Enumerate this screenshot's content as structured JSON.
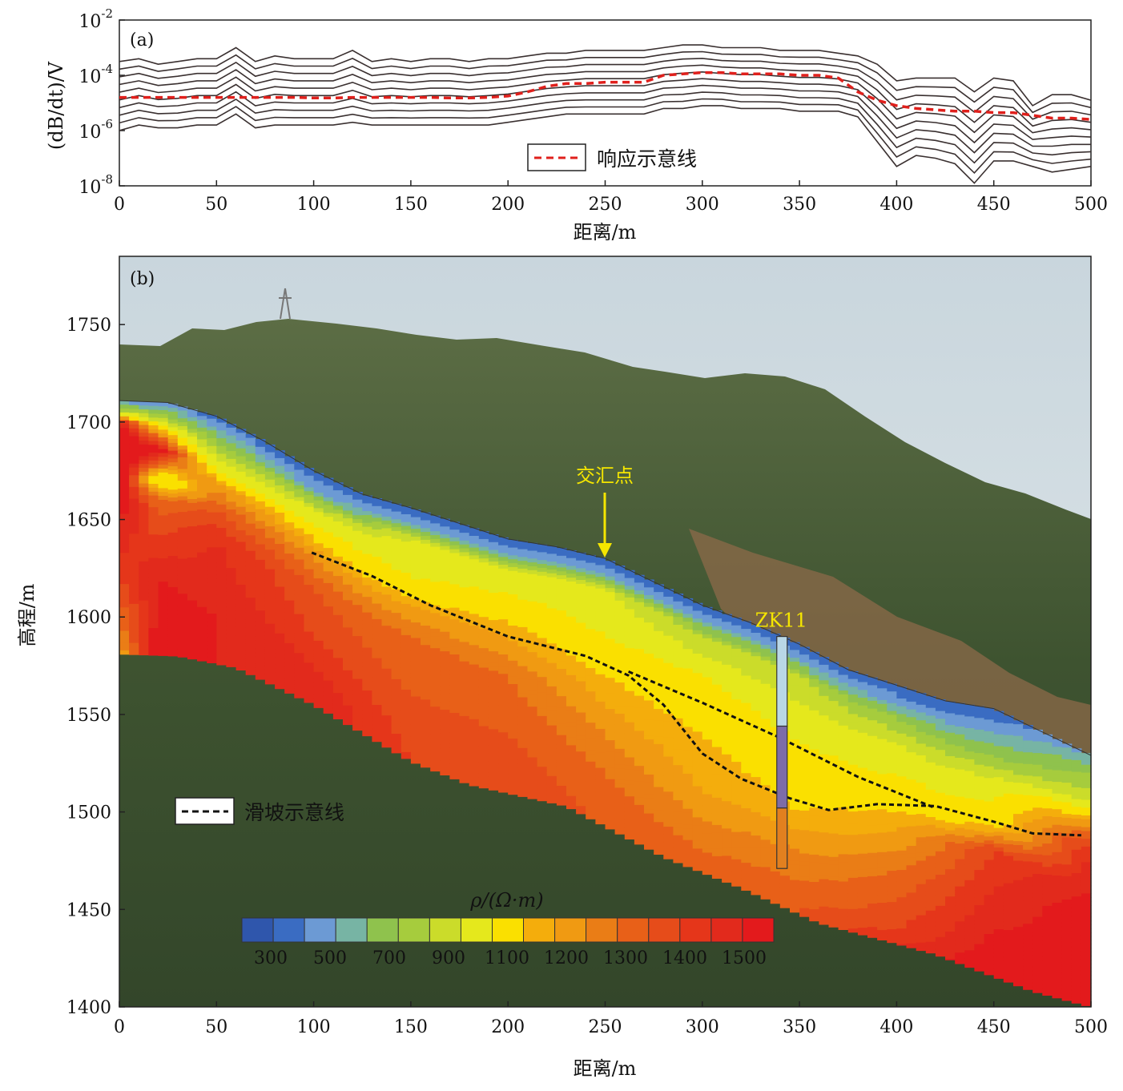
{
  "panel_a": {
    "panel_label": "(a)",
    "ylabel": "(dB/dt)/V",
    "xlabel": "距离/m",
    "ytick_labels": [
      {
        "base": "10",
        "exp": "-2"
      },
      {
        "base": "10",
        "exp": "-4"
      },
      {
        "base": "10",
        "exp": "-6"
      },
      {
        "base": "10",
        "exp": "-8"
      }
    ],
    "legend": "响应示意线"
  },
  "panel_b": {
    "panel_label": "(b)",
    "ylabel": "高程/m",
    "xlabel": "距离/m",
    "annotation_intersection": "交汇点",
    "borehole_label": "ZK11",
    "legend": "滑坡示意线",
    "colorbar_title": "ρ/(Ω·m)"
  },
  "chart_data": [
    {
      "type": "line",
      "title": "",
      "xlabel": "距离/m",
      "ylabel": "(dB/dt)/V",
      "yscale": "log",
      "xlim": [
        0,
        500
      ],
      "ylim": [
        1e-08,
        0.01
      ],
      "x_ticks": [
        0,
        50,
        100,
        150,
        200,
        250,
        300,
        350,
        400,
        450,
        500
      ],
      "x": [
        0,
        10,
        20,
        30,
        40,
        50,
        60,
        70,
        80,
        90,
        100,
        110,
        120,
        130,
        140,
        150,
        160,
        170,
        180,
        190,
        200,
        210,
        220,
        230,
        240,
        250,
        260,
        270,
        280,
        290,
        300,
        310,
        320,
        330,
        340,
        350,
        360,
        370,
        380,
        390,
        400,
        410,
        420,
        430,
        440,
        450,
        460,
        470,
        480,
        490,
        500
      ],
      "series": [
        {
          "name": "响应示意线",
          "style": "red dashed",
          "log10_values": [
            -4.8,
            -4.8,
            -4.8,
            -4.8,
            -4.8,
            -4.8,
            -4.8,
            -4.8,
            -4.8,
            -4.8,
            -4.82,
            -4.82,
            -4.8,
            -4.8,
            -4.8,
            -4.8,
            -4.8,
            -4.82,
            -4.82,
            -4.8,
            -4.75,
            -4.6,
            -4.4,
            -4.3,
            -4.3,
            -4.25,
            -4.25,
            -4.25,
            -4.0,
            -3.95,
            -3.9,
            -3.9,
            -3.95,
            -3.95,
            -3.95,
            -4.0,
            -4.0,
            -4.1,
            -4.6,
            -4.9,
            -5.1,
            -5.2,
            -5.25,
            -5.3,
            -5.3,
            -5.35,
            -5.35,
            -5.45,
            -5.55,
            -5.55,
            -5.6
          ]
        },
        {
          "name": "",
          "style": "gray",
          "log10_values": [
            -6.0,
            -5.8,
            -5.9,
            -5.9,
            -5.8,
            -5.8,
            -5.4,
            -5.9,
            -5.8,
            -5.8,
            -5.8,
            -5.8,
            -5.7,
            -5.8,
            -5.8,
            -5.8,
            -5.8,
            -5.8,
            -5.8,
            -5.8,
            -5.7,
            -5.6,
            -5.5,
            -5.4,
            -5.4,
            -5.4,
            -5.4,
            -5.4,
            -5.2,
            -5.2,
            -5.1,
            -5.1,
            -5.2,
            -5.2,
            -5.2,
            -5.3,
            -5.3,
            -5.3,
            -5.5,
            -6.4,
            -7.3,
            -6.9,
            -7.0,
            -7.2,
            -7.9,
            -7.1,
            -7.1,
            -7.3,
            -7.5,
            -7.4,
            -7.3
          ]
        },
        {
          "name": "",
          "style": "gray",
          "log10_values": [
            -3.5,
            -3.4,
            -3.6,
            -3.5,
            -3.4,
            -3.4,
            -3.0,
            -3.5,
            -3.3,
            -3.4,
            -3.4,
            -3.4,
            -3.1,
            -3.5,
            -3.4,
            -3.5,
            -3.4,
            -3.4,
            -3.5,
            -3.4,
            -3.4,
            -3.3,
            -3.2,
            -3.2,
            -3.1,
            -3.1,
            -3.1,
            -3.1,
            -3.0,
            -2.9,
            -2.9,
            -3.0,
            -3.0,
            -3.0,
            -3.1,
            -3.1,
            -3.1,
            -3.2,
            -3.3,
            -3.6,
            -4.2,
            -4.1,
            -4.1,
            -4.1,
            -4.6,
            -4.1,
            -4.2,
            -5.1,
            -4.7,
            -4.7,
            -4.9
          ]
        }
      ]
    },
    {
      "type": "heatmap",
      "title": "",
      "xlabel": "距离/m",
      "ylabel": "高程/m",
      "xlim": [
        0,
        500
      ],
      "ylim": [
        1400,
        1785
      ],
      "x_ticks": [
        0,
        50,
        100,
        150,
        200,
        250,
        300,
        350,
        400,
        450,
        500
      ],
      "y_ticks": [
        1400,
        1450,
        1500,
        1550,
        1600,
        1650,
        1700,
        1750
      ],
      "surface": {
        "x": [
          0,
          25,
          50,
          75,
          100,
          125,
          150,
          175,
          200,
          225,
          250,
          275,
          300,
          325,
          350,
          375,
          400,
          425,
          450,
          475,
          500
        ],
        "elevation": [
          1711,
          1710,
          1703,
          1690,
          1675,
          1663,
          1656,
          1648,
          1640,
          1636,
          1630,
          1618,
          1606,
          1597,
          1586,
          1573,
          1565,
          1557,
          1553,
          1541,
          1529
        ]
      },
      "base": {
        "x": [
          0,
          30,
          60,
          100,
          150,
          180,
          230,
          280,
          320,
          360,
          420,
          470,
          500
        ],
        "elevation": [
          1581,
          1580,
          1574,
          1555,
          1526,
          1514,
          1503,
          1477,
          1461,
          1443,
          1427,
          1408,
          1400
        ]
      },
      "resistivity_profiles": [
        {
          "x": 0,
          "points": [
            [
              1711,
              450
            ],
            [
              1706,
              800
            ],
            [
              1700,
              1450
            ],
            [
              1690,
              1600
            ],
            [
              1660,
              1500
            ],
            [
              1620,
              1350
            ],
            [
              1581,
              1150
            ]
          ]
        },
        {
          "x": 20,
          "points": [
            [
              1710,
              400
            ],
            [
              1704,
              700
            ],
            [
              1695,
              1150
            ],
            [
              1685,
              1500
            ],
            [
              1670,
              950
            ],
            [
              1660,
              1250
            ],
            [
              1640,
              1350
            ],
            [
              1620,
              1450
            ],
            [
              1580,
              1500
            ]
          ]
        },
        {
          "x": 50,
          "points": [
            [
              1703,
              350
            ],
            [
              1690,
              700
            ],
            [
              1680,
              900
            ],
            [
              1670,
              1150
            ],
            [
              1655,
              1300
            ],
            [
              1640,
              1400
            ],
            [
              1600,
              1450
            ],
            [
              1574,
              1450
            ]
          ]
        },
        {
          "x": 100,
          "points": [
            [
              1675,
              300
            ],
            [
              1665,
              500
            ],
            [
              1655,
              900
            ],
            [
              1640,
              1100
            ],
            [
              1630,
              1200
            ],
            [
              1615,
              1300
            ],
            [
              1590,
              1350
            ],
            [
              1560,
              1450
            ]
          ]
        },
        {
          "x": 150,
          "points": [
            [
              1656,
              300
            ],
            [
              1648,
              500
            ],
            [
              1640,
              900
            ],
            [
              1620,
              1000
            ],
            [
              1605,
              1150
            ],
            [
              1590,
              1250
            ],
            [
              1560,
              1300
            ],
            [
              1526,
              1350
            ]
          ]
        },
        {
          "x": 200,
          "points": [
            [
              1640,
              300
            ],
            [
              1633,
              500
            ],
            [
              1625,
              900
            ],
            [
              1605,
              1050
            ],
            [
              1590,
              1150
            ],
            [
              1570,
              1250
            ],
            [
              1540,
              1300
            ],
            [
              1510,
              1350
            ]
          ]
        },
        {
          "x": 250,
          "points": [
            [
              1630,
              300
            ],
            [
              1623,
              500
            ],
            [
              1615,
              900
            ],
            [
              1590,
              1000
            ],
            [
              1570,
              1100
            ],
            [
              1540,
              1200
            ],
            [
              1520,
              1250
            ],
            [
              1490,
              1300
            ]
          ]
        },
        {
          "x": 300,
          "points": [
            [
              1606,
              300
            ],
            [
              1598,
              500
            ],
            [
              1590,
              800
            ],
            [
              1570,
              1000
            ],
            [
              1540,
              1100
            ],
            [
              1510,
              1150
            ],
            [
              1480,
              1250
            ],
            [
              1470,
              1300
            ]
          ]
        },
        {
          "x": 350,
          "points": [
            [
              1586,
              300
            ],
            [
              1578,
              500
            ],
            [
              1570,
              800
            ],
            [
              1550,
              950
            ],
            [
              1520,
              1050
            ],
            [
              1500,
              1100
            ],
            [
              1480,
              1200
            ],
            [
              1450,
              1300
            ]
          ]
        },
        {
          "x": 400,
          "points": [
            [
              1565,
              300
            ],
            [
              1555,
              500
            ],
            [
              1548,
              700
            ],
            [
              1535,
              900
            ],
            [
              1510,
              1050
            ],
            [
              1490,
              1150
            ],
            [
              1470,
              1250
            ],
            [
              1440,
              1350
            ],
            [
              1425,
              1450
            ]
          ]
        },
        {
          "x": 450,
          "points": [
            [
              1553,
              300
            ],
            [
              1540,
              500
            ],
            [
              1528,
              700
            ],
            [
              1515,
              950
            ],
            [
              1495,
              1050
            ],
            [
              1480,
              1350
            ],
            [
              1460,
              1400
            ],
            [
              1420,
              1500
            ]
          ]
        },
        {
          "x": 500,
          "points": [
            [
              1529,
              500
            ],
            [
              1520,
              700
            ],
            [
              1505,
              900
            ],
            [
              1495,
              1150
            ],
            [
              1480,
              1400
            ],
            [
              1440,
              1500
            ],
            [
              1400,
              1500
            ]
          ]
        }
      ],
      "landslide_lines": [
        {
          "name": "滑坡示意线",
          "points": [
            [
              99,
              1633
            ],
            [
              130,
              1621
            ],
            [
              160,
              1606
            ],
            [
              200,
              1590
            ],
            [
              240,
              1580
            ],
            [
              262,
              1570
            ],
            [
              280,
              1555
            ],
            [
              300,
              1530
            ],
            [
              320,
              1517
            ],
            [
              345,
              1507
            ],
            [
              365,
              1501
            ],
            [
              390,
              1504
            ],
            [
              420,
              1503
            ],
            [
              450,
              1495
            ],
            [
              470,
              1489
            ],
            [
              495,
              1488
            ]
          ]
        },
        {
          "name": "滑坡示意线",
          "points": [
            [
              262,
              1572
            ],
            [
              300,
              1556
            ],
            [
              340,
              1538
            ],
            [
              380,
              1518
            ],
            [
              420,
              1502
            ]
          ]
        }
      ],
      "borehole": {
        "name": "ZK11",
        "x": 341,
        "top": 1590,
        "bottom": 1471,
        "segments": [
          {
            "from": 1590,
            "to": 1544,
            "color": "#b9d7e6"
          },
          {
            "from": 1544,
            "to": 1502,
            "color": "#7d6ca8"
          },
          {
            "from": 1502,
            "to": 1471,
            "color": "#e2801f"
          }
        ]
      },
      "intersection_point": {
        "x": 250,
        "elevation": 1630
      },
      "colorbar": {
        "title": "ρ/(Ω·m)",
        "tick_labels": [
          "300",
          "500",
          "700",
          "900",
          "1100",
          "1200",
          "1300",
          "1400",
          "1500"
        ],
        "bins": [
          "#2f56ac",
          "#3a6cc2",
          "#6c9ad4",
          "#77b4a4",
          "#8fc24d",
          "#a6cc3d",
          "#cbdc2a",
          "#e5e81c",
          "#fae000",
          "#f4ad0c",
          "#f09a12",
          "#ea7d16",
          "#e86018",
          "#e64c1a",
          "#e5361a",
          "#e22a1c",
          "#e31a1c"
        ]
      }
    }
  ]
}
